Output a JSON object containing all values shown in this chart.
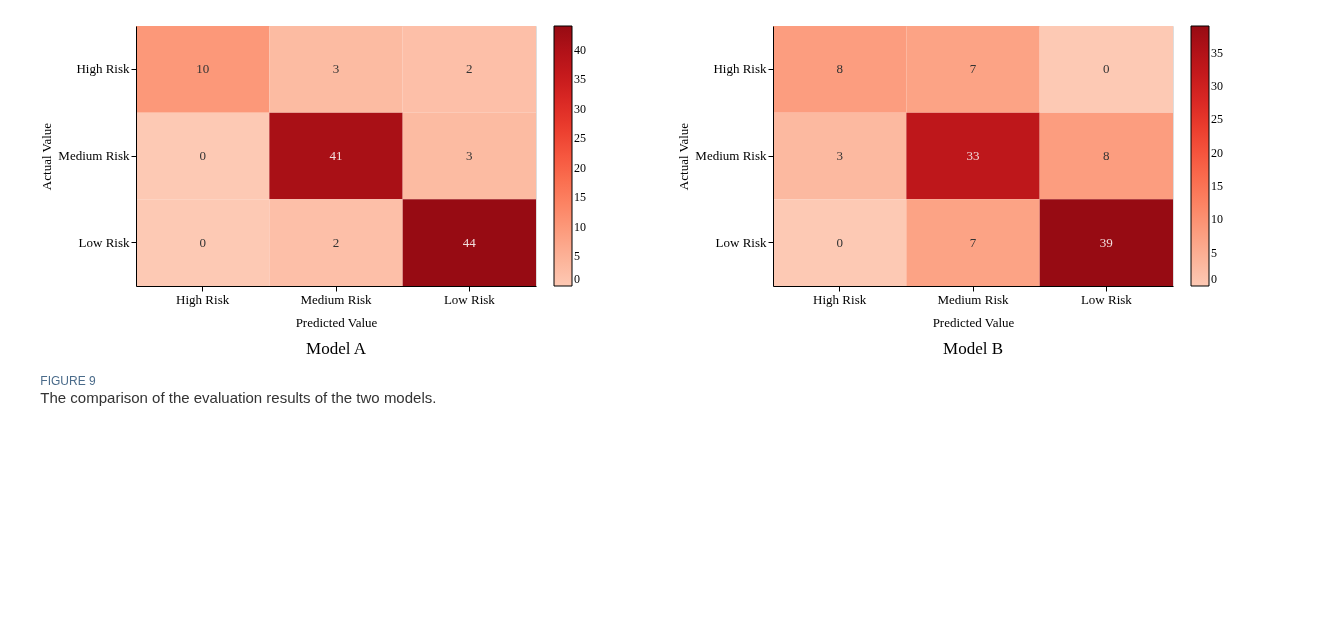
{
  "chart_data": [
    {
      "type": "heatmap",
      "title": "Model A",
      "xlabel": "Predicted Value",
      "ylabel": "Actual Value",
      "categories": [
        "High Risk",
        "Medium Risk",
        "Low Risk"
      ],
      "y_categories": [
        "High Risk",
        "Medium Risk",
        "Low Risk"
      ],
      "cells": [
        [
          10,
          3,
          2
        ],
        [
          0,
          41,
          3
        ],
        [
          0,
          2,
          44
        ]
      ],
      "clim": [
        0,
        44
      ],
      "cticks": [
        0,
        5,
        10,
        15,
        20,
        25,
        30,
        35,
        40
      ],
      "data_labels": true,
      "annotations": [
        "FIGURE 9",
        "The comparison of the evaluation results of the two models."
      ]
    },
    {
      "type": "heatmap",
      "title": "Model B",
      "xlabel": "Predicted Value",
      "ylabel": "Actual Value",
      "categories": [
        "High Risk",
        "Medium Risk",
        "Low Risk"
      ],
      "y_categories": [
        "High Risk",
        "Medium Risk",
        "Low Risk"
      ],
      "cells": [
        [
          8,
          7,
          0
        ],
        [
          3,
          33,
          8
        ],
        [
          0,
          7,
          39
        ]
      ],
      "clim": [
        0,
        39
      ],
      "cticks": [
        0,
        5,
        10,
        15,
        20,
        25,
        30,
        35
      ],
      "data_labels": true
    }
  ]
}
